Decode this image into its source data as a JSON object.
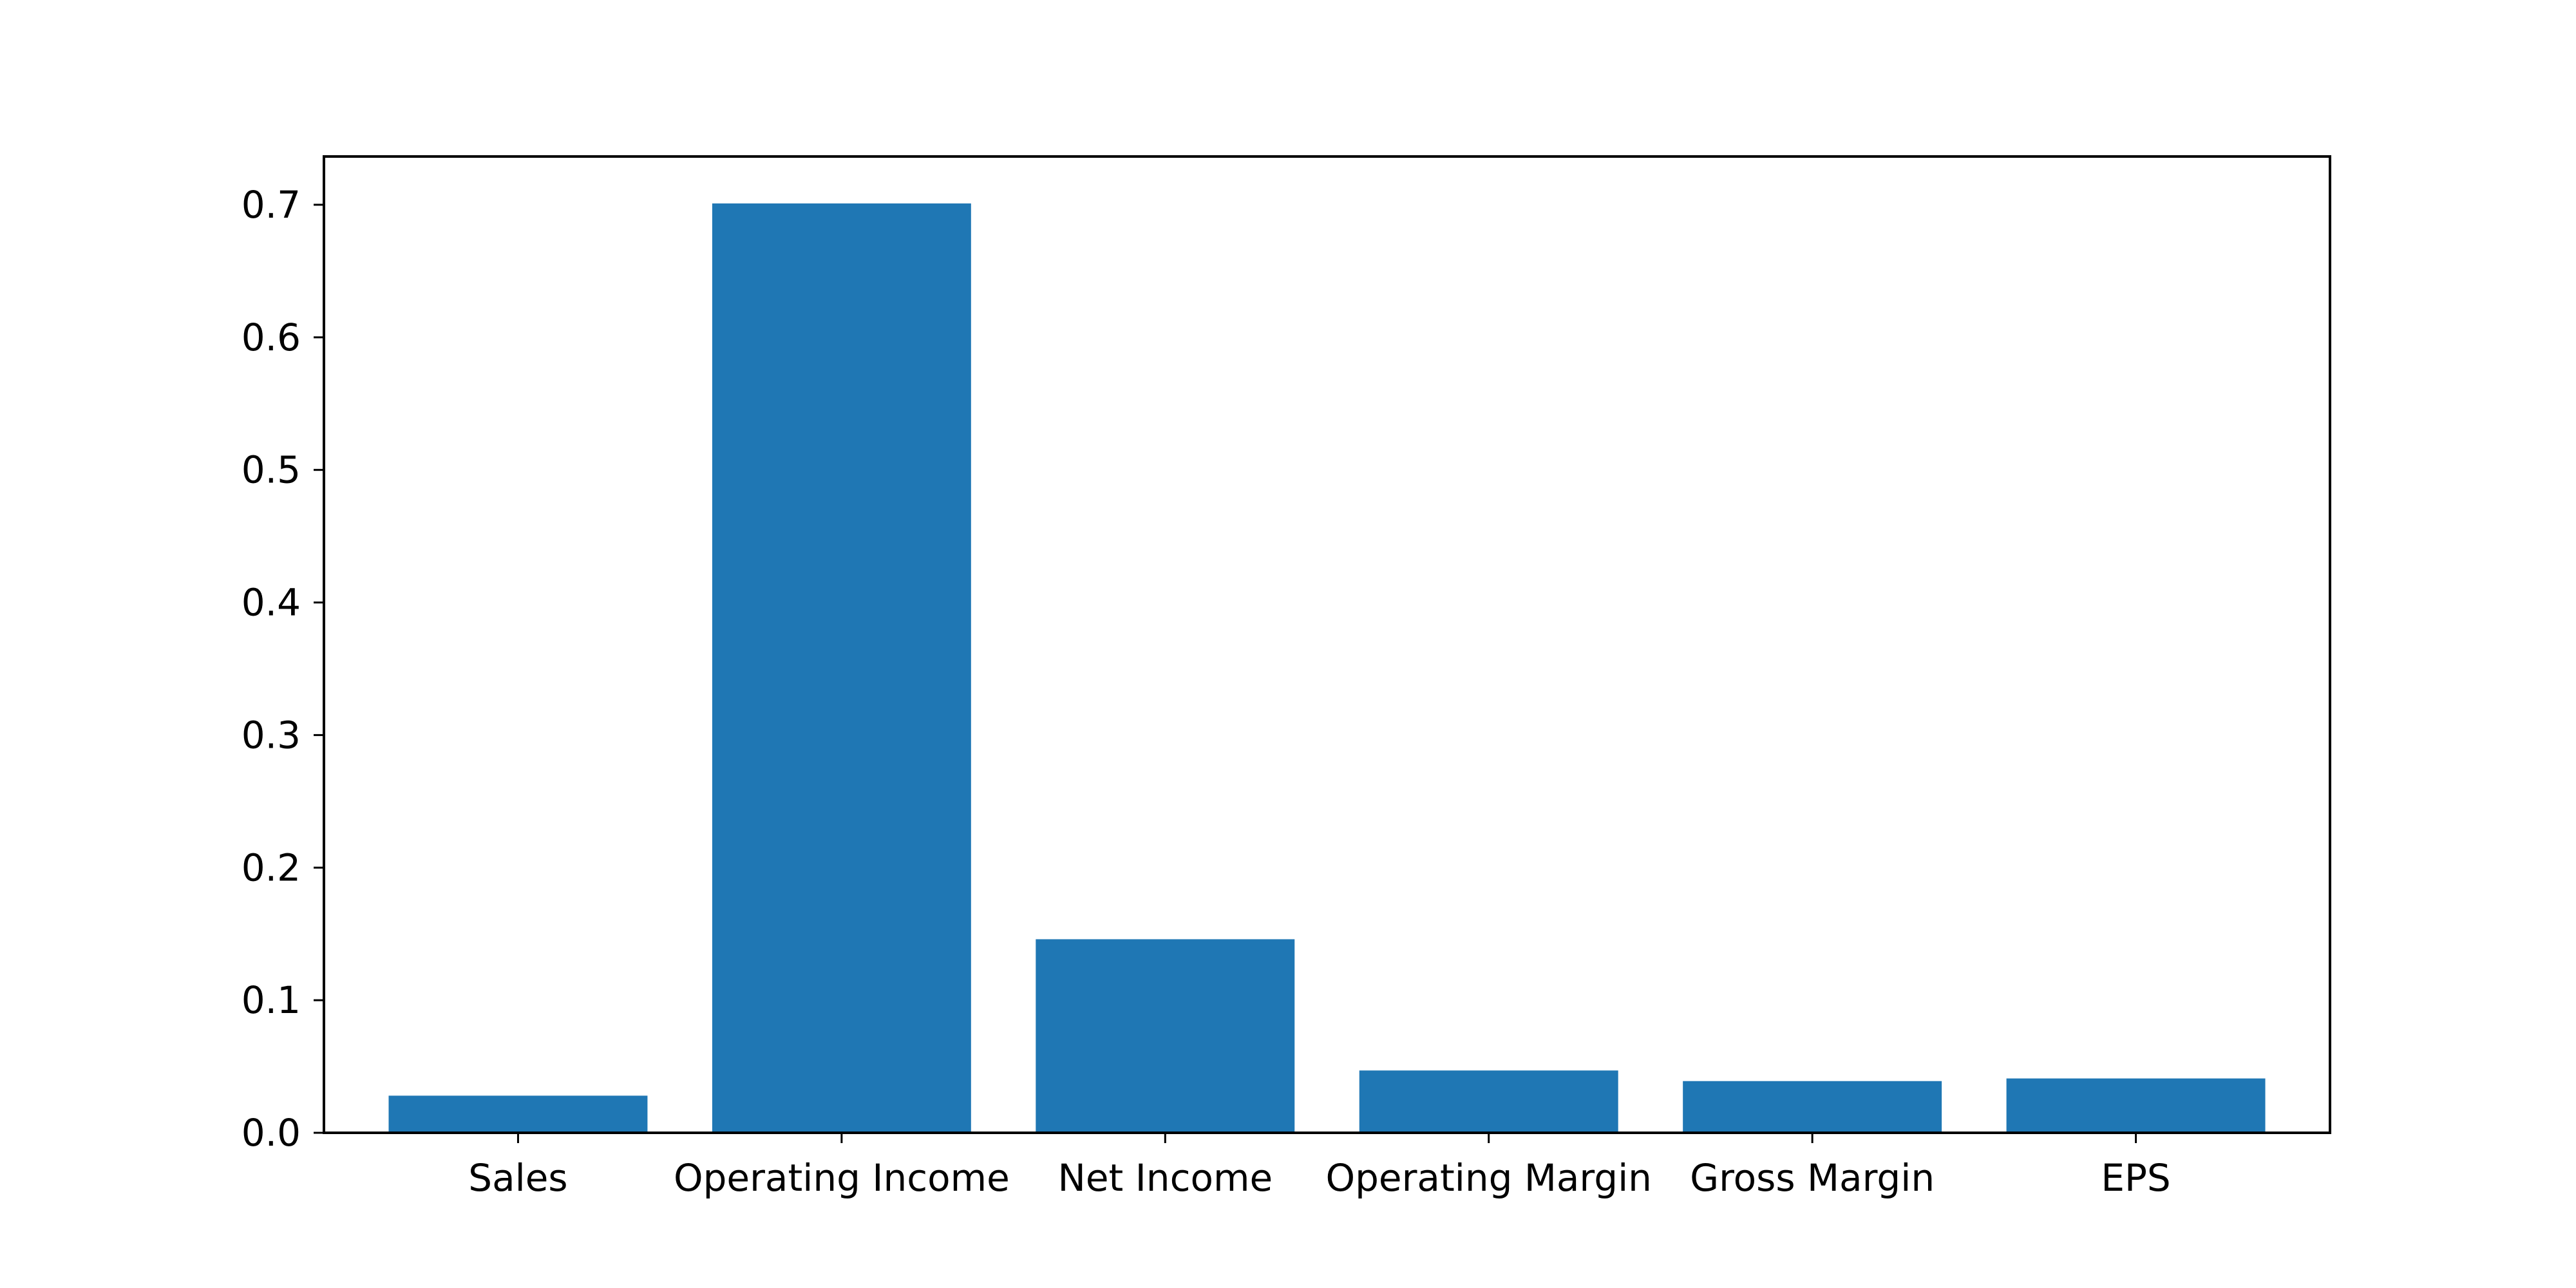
{
  "chart_data": {
    "type": "bar",
    "categories": [
      "Sales",
      "Operating Income",
      "Net Income",
      "Operating Margin",
      "Gross Margin",
      "EPS"
    ],
    "values": [
      0.028,
      0.701,
      0.146,
      0.047,
      0.039,
      0.041
    ],
    "title": "",
    "xlabel": "",
    "ylabel": "",
    "ylim": [
      0,
      0.7364
    ],
    "yticks": [
      0.0,
      0.1,
      0.2,
      0.3,
      0.4,
      0.5,
      0.6,
      0.7
    ],
    "ytick_labels": [
      "0.0",
      "0.1",
      "0.2",
      "0.3",
      "0.4",
      "0.5",
      "0.6",
      "0.7"
    ],
    "grid": false,
    "bar_color": "#1f77b4"
  }
}
